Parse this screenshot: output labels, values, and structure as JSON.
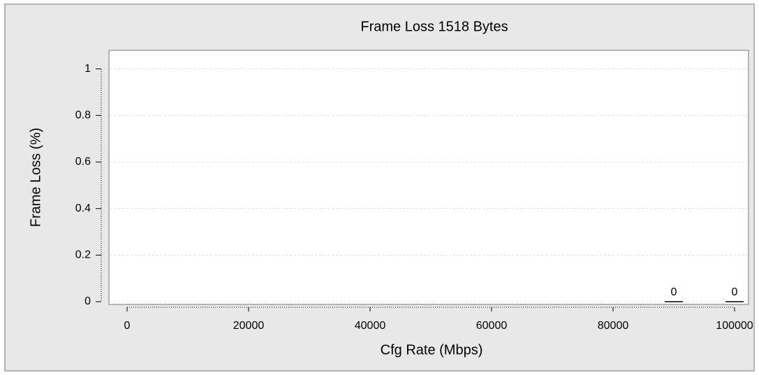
{
  "chart_data": {
    "type": "bar",
    "title": "Frame Loss 1518 Bytes",
    "x_label": "Cfg Rate (Mbps)",
    "y_label": "Frame Loss (%)",
    "x": [
      90000,
      100000
    ],
    "values": [
      0,
      0
    ],
    "color": "#000000",
    "xlim": [
      0,
      100000
    ],
    "xticks": [
      0,
      20000,
      40000,
      60000,
      80000,
      100000
    ],
    "ylim": [
      0,
      1.08
    ],
    "yticks": [
      0,
      0.2,
      0.4,
      0.6,
      0.8,
      1
    ],
    "grid": true
  }
}
